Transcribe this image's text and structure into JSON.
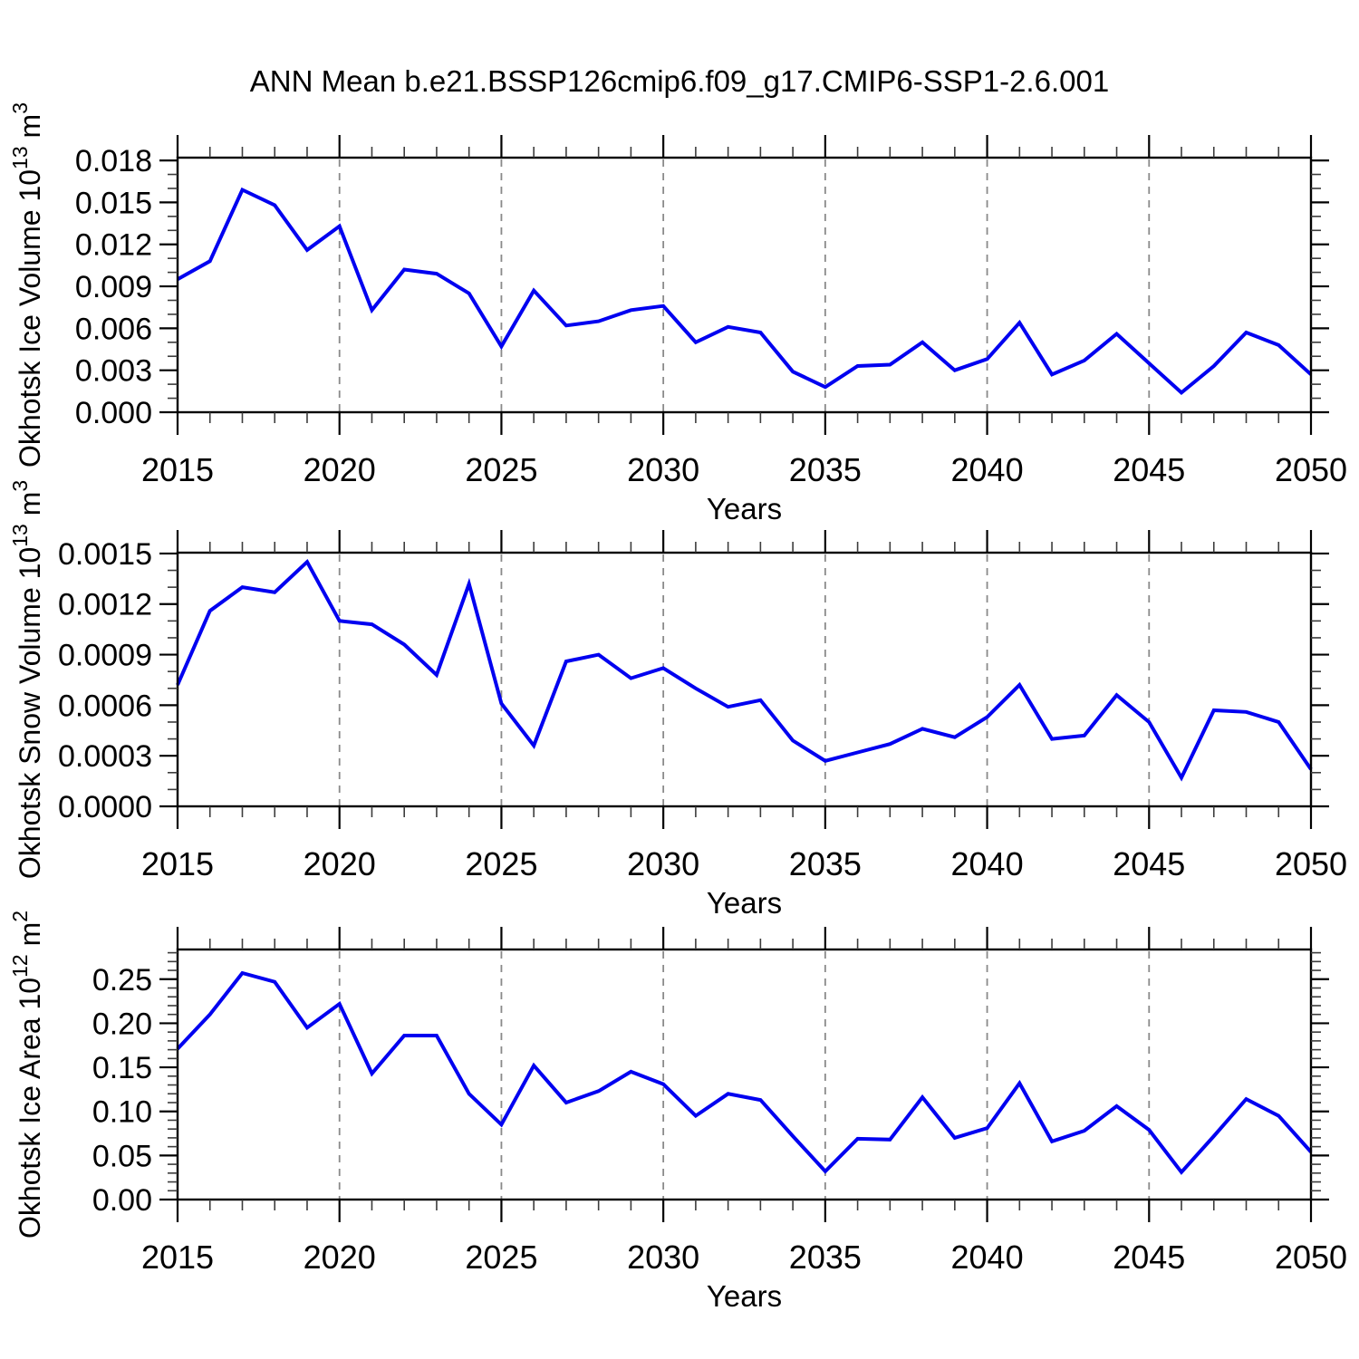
{
  "title": "ANN Mean b.e21.BSSP126cmip6.f09_g17.CMIP6-SSP1-2.6.001",
  "colors": {
    "line": "#0000f0",
    "grid": "#8a8a8a",
    "axis": "#000000",
    "background": "#ffffff"
  },
  "chart_data": [
    {
      "type": "line",
      "name": "ice-volume",
      "ylabel_parts": [
        {
          "text": "Okhotsk Ice Volume 10",
          "super": false
        },
        {
          "text": "13",
          "super": true
        },
        {
          "text": " m",
          "super": false
        },
        {
          "text": "3",
          "super": true
        }
      ],
      "xlabel": "Years",
      "xlim": [
        2015,
        2050
      ],
      "ylim": [
        0,
        0.0182
      ],
      "x_major_ticks": [
        2015,
        2020,
        2025,
        2030,
        2035,
        2040,
        2045,
        2050
      ],
      "x_minor_step": 1,
      "x_gridlines": [
        2020,
        2025,
        2030,
        2035,
        2040,
        2045
      ],
      "ytick_values": [
        0.0,
        0.003,
        0.006,
        0.009,
        0.012,
        0.015,
        0.018
      ],
      "ytick_labels": [
        "0.000",
        "0.003",
        "0.006",
        "0.009",
        "0.012",
        "0.015",
        "0.018"
      ],
      "y_minor_step": 0.001,
      "years": [
        2015,
        2016,
        2017,
        2018,
        2019,
        2020,
        2021,
        2022,
        2023,
        2024,
        2025,
        2026,
        2027,
        2028,
        2029,
        2030,
        2031,
        2032,
        2033,
        2034,
        2035,
        2036,
        2037,
        2038,
        2039,
        2040,
        2041,
        2042,
        2043,
        2044,
        2045,
        2046,
        2047,
        2048,
        2049,
        2050
      ],
      "values": [
        0.0095,
        0.0108,
        0.0159,
        0.0148,
        0.0116,
        0.0133,
        0.0073,
        0.0102,
        0.0099,
        0.0085,
        0.0047,
        0.0087,
        0.0062,
        0.0065,
        0.0073,
        0.0076,
        0.005,
        0.0061,
        0.0057,
        0.0029,
        0.0018,
        0.0033,
        0.0034,
        0.005,
        0.003,
        0.0038,
        0.0064,
        0.0027,
        0.0037,
        0.0056,
        0.0035,
        0.0014,
        0.0033,
        0.0057,
        0.0048,
        0.0027
      ]
    },
    {
      "type": "line",
      "name": "snow-volume",
      "ylabel_parts": [
        {
          "text": "Okhotsk Snow Volume 10",
          "super": false
        },
        {
          "text": "13",
          "super": true
        },
        {
          "text": " m",
          "super": false
        },
        {
          "text": "3",
          "super": true
        }
      ],
      "xlabel": "Years",
      "xlim": [
        2015,
        2050
      ],
      "ylim": [
        0,
        0.001505
      ],
      "x_major_ticks": [
        2015,
        2020,
        2025,
        2030,
        2035,
        2040,
        2045,
        2050
      ],
      "x_minor_step": 1,
      "x_gridlines": [
        2020,
        2025,
        2030,
        2035,
        2040,
        2045
      ],
      "ytick_values": [
        0.0,
        0.0003,
        0.0006,
        0.0009,
        0.0012,
        0.0015
      ],
      "ytick_labels": [
        "0.0000",
        "0.0003",
        "0.0006",
        "0.0009",
        "0.0012",
        "0.0015"
      ],
      "y_minor_step": 0.0001,
      "years": [
        2015,
        2016,
        2017,
        2018,
        2019,
        2020,
        2021,
        2022,
        2023,
        2024,
        2025,
        2026,
        2027,
        2028,
        2029,
        2030,
        2031,
        2032,
        2033,
        2034,
        2035,
        2036,
        2037,
        2038,
        2039,
        2040,
        2041,
        2042,
        2043,
        2044,
        2045,
        2046,
        2047,
        2048,
        2049,
        2050
      ],
      "values": [
        0.00072,
        0.00116,
        0.0013,
        0.00127,
        0.00145,
        0.0011,
        0.00108,
        0.00096,
        0.00078,
        0.00132,
        0.00061,
        0.00036,
        0.00086,
        0.0009,
        0.00076,
        0.00082,
        0.0007,
        0.00059,
        0.00063,
        0.00039,
        0.00027,
        0.00032,
        0.00037,
        0.00046,
        0.00041,
        0.00053,
        0.00072,
        0.0004,
        0.00042,
        0.00066,
        0.0005,
        0.00017,
        0.00057,
        0.00056,
        0.0005,
        0.00022
      ]
    },
    {
      "type": "line",
      "name": "ice-area",
      "ylabel_parts": [
        {
          "text": "Okhotsk Ice Area 10",
          "super": false
        },
        {
          "text": "12",
          "super": true
        },
        {
          "text": " m",
          "super": false
        },
        {
          "text": "2",
          "super": true
        }
      ],
      "xlabel": "Years",
      "xlim": [
        2015,
        2050
      ],
      "ylim": [
        0,
        0.2837
      ],
      "x_major_ticks": [
        2015,
        2020,
        2025,
        2030,
        2035,
        2040,
        2045,
        2050
      ],
      "x_minor_step": 1,
      "x_gridlines": [
        2020,
        2025,
        2030,
        2035,
        2040,
        2045
      ],
      "ytick_values": [
        0.0,
        0.05,
        0.1,
        0.15,
        0.2,
        0.25
      ],
      "ytick_labels": [
        "0.00",
        "0.05",
        "0.10",
        "0.15",
        "0.20",
        "0.25"
      ],
      "y_minor_step": 0.01,
      "years": [
        2015,
        2016,
        2017,
        2018,
        2019,
        2020,
        2021,
        2022,
        2023,
        2024,
        2025,
        2026,
        2027,
        2028,
        2029,
        2030,
        2031,
        2032,
        2033,
        2034,
        2035,
        2036,
        2037,
        2038,
        2039,
        2040,
        2041,
        2042,
        2043,
        2044,
        2045,
        2046,
        2047,
        2048,
        2049,
        2050
      ],
      "values": [
        0.171,
        0.21,
        0.257,
        0.247,
        0.195,
        0.222,
        0.143,
        0.186,
        0.186,
        0.12,
        0.085,
        0.152,
        0.11,
        0.123,
        0.145,
        0.131,
        0.095,
        0.12,
        0.113,
        0.072,
        0.032,
        0.069,
        0.068,
        0.116,
        0.07,
        0.081,
        0.132,
        0.066,
        0.078,
        0.106,
        0.079,
        0.031,
        0.072,
        0.114,
        0.095,
        0.054
      ]
    }
  ]
}
